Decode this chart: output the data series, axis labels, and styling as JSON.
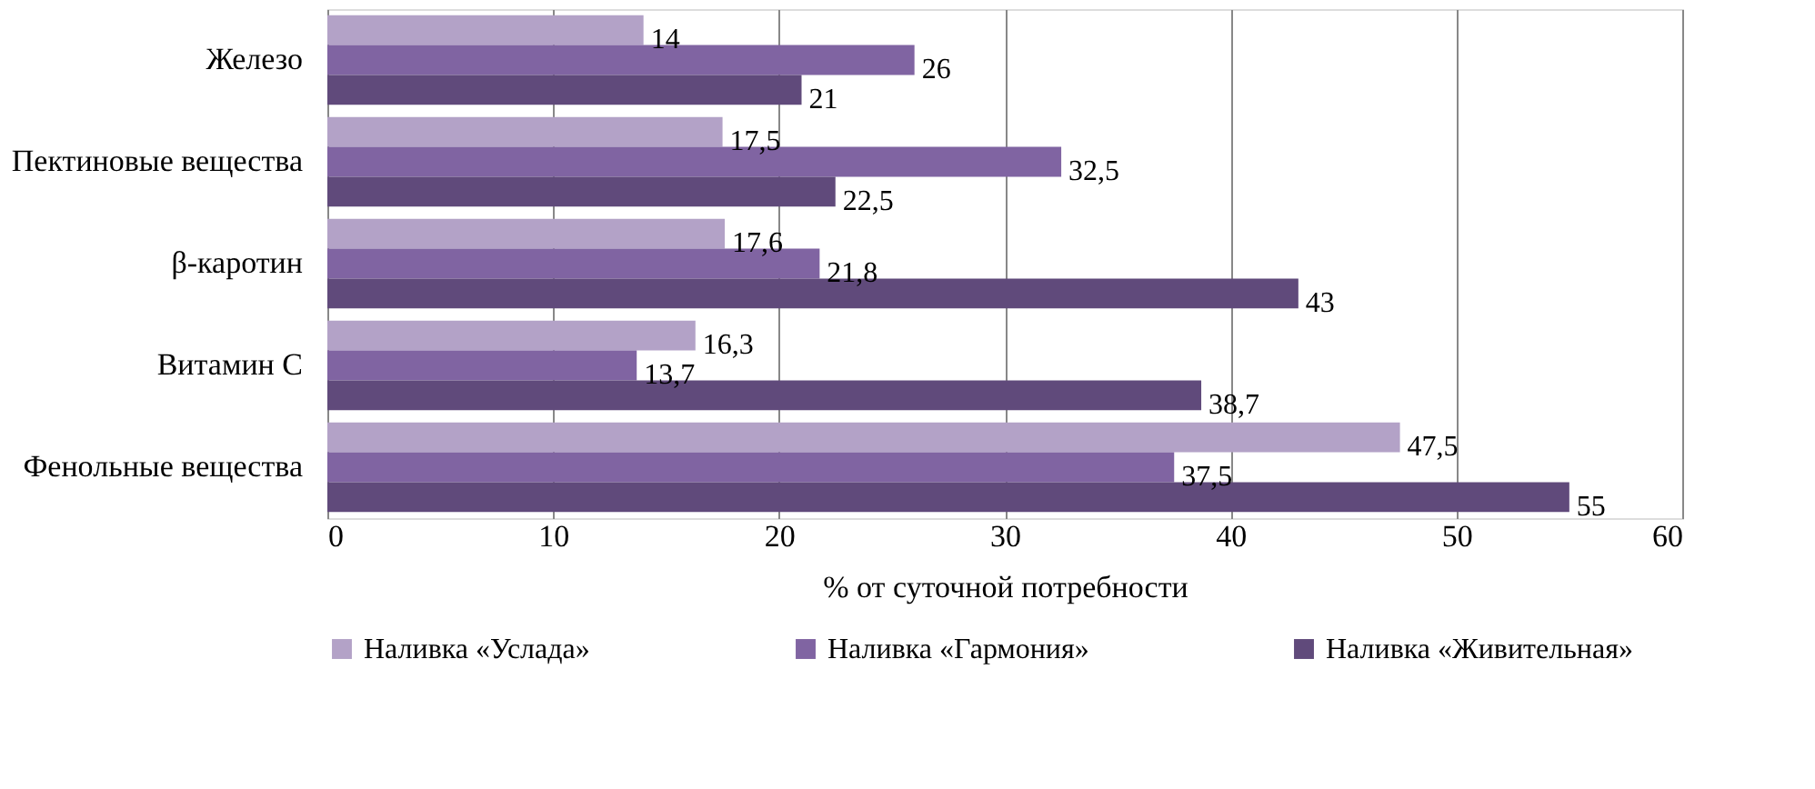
{
  "chart_data": {
    "type": "bar",
    "orientation": "horizontal",
    "xlabel": "% от суточной потребности",
    "categories": [
      "Железо",
      "Пектиновые вещества",
      "β-каротин",
      "Витамин С",
      "Фенольные вещества"
    ],
    "series": [
      {
        "name": "Наливка «Услада»",
        "color": "#b3a2c7",
        "values": [
          14,
          17.5,
          17.6,
          16.3,
          47.5
        ],
        "value_labels": [
          "14",
          "17,5",
          "17,6",
          "16,3",
          "47,5"
        ]
      },
      {
        "name": "Наливка «Гармония»",
        "color": "#8064a2",
        "values": [
          26,
          32.5,
          21.8,
          13.7,
          37.5
        ],
        "value_labels": [
          "26",
          "32,5",
          "21,8",
          "13,7",
          "37,5"
        ]
      },
      {
        "name": "Наливка «Живительная»",
        "color": "#604a7b",
        "values": [
          21,
          22.5,
          43,
          38.7,
          55
        ],
        "value_labels": [
          "21",
          "22,5",
          "43",
          "38,7",
          "55"
        ]
      }
    ],
    "xlim": [
      0,
      60
    ],
    "xticks": [
      0,
      10,
      20,
      30,
      40,
      50,
      60
    ],
    "grid": "x",
    "legend": "bottom"
  }
}
